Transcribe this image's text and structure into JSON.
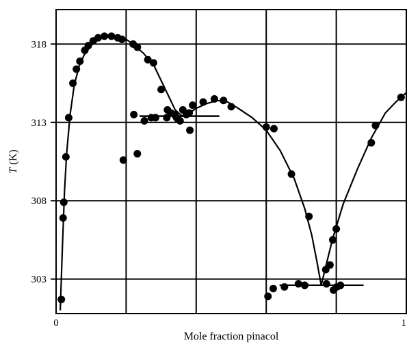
{
  "chart_data": {
    "type": "scatter",
    "xlabel": "Mole fraction pinacol",
    "ylabel_symbol": "T",
    "ylabel_unit": " (K)",
    "xlim": [
      0,
      1
    ],
    "ylim": [
      300.8,
      320.2
    ],
    "x_ticks": [
      {
        "value": 0,
        "label": "0"
      },
      {
        "value": 1,
        "label": "1"
      }
    ],
    "x_gridlines": [
      0.2,
      0.4,
      0.6,
      0.8
    ],
    "y_ticks": [
      303,
      308,
      313,
      318
    ],
    "grid": true,
    "legend": "none",
    "series": [
      {
        "kind": "points",
        "points": [
          [
            0.015,
            301.7
          ],
          [
            0.02,
            306.9
          ],
          [
            0.022,
            307.9
          ],
          [
            0.028,
            310.8
          ],
          [
            0.036,
            313.3
          ],
          [
            0.048,
            315.5
          ],
          [
            0.058,
            316.4
          ],
          [
            0.068,
            316.9
          ],
          [
            0.082,
            317.6
          ],
          [
            0.092,
            317.9
          ],
          [
            0.106,
            318.2
          ],
          [
            0.12,
            318.4
          ],
          [
            0.138,
            318.5
          ],
          [
            0.158,
            318.5
          ],
          [
            0.176,
            318.4
          ],
          [
            0.188,
            318.3
          ],
          [
            0.22,
            318.0
          ],
          [
            0.232,
            317.8
          ],
          [
            0.262,
            317.0
          ],
          [
            0.278,
            316.8
          ],
          [
            0.3,
            315.1
          ],
          [
            0.318,
            313.8
          ],
          [
            0.328,
            313.6
          ],
          [
            0.338,
            313.5
          ],
          [
            0.344,
            313.3
          ],
          [
            0.354,
            313.1
          ],
          [
            0.362,
            313.8
          ],
          [
            0.372,
            313.5
          ],
          [
            0.38,
            313.6
          ],
          [
            0.39,
            314.1
          ],
          [
            0.42,
            314.3
          ],
          [
            0.452,
            314.5
          ],
          [
            0.478,
            314.4
          ],
          [
            0.5,
            314.0
          ],
          [
            0.222,
            313.5
          ],
          [
            0.252,
            313.1
          ],
          [
            0.272,
            313.3
          ],
          [
            0.284,
            313.3
          ],
          [
            0.316,
            313.3
          ],
          [
            0.348,
            313.2
          ],
          [
            0.382,
            312.5
          ],
          [
            0.192,
            310.6
          ],
          [
            0.232,
            311.0
          ],
          [
            0.6,
            312.7
          ],
          [
            0.622,
            312.6
          ],
          [
            0.672,
            309.7
          ],
          [
            0.722,
            307.0
          ],
          [
            0.77,
            303.6
          ],
          [
            0.782,
            303.9
          ],
          [
            0.79,
            305.5
          ],
          [
            0.8,
            306.2
          ],
          [
            0.605,
            301.9
          ],
          [
            0.62,
            302.4
          ],
          [
            0.652,
            302.5
          ],
          [
            0.692,
            302.7
          ],
          [
            0.71,
            302.6
          ],
          [
            0.772,
            302.7
          ],
          [
            0.792,
            302.3
          ],
          [
            0.802,
            302.5
          ],
          [
            0.812,
            302.6
          ],
          [
            0.9,
            311.7
          ],
          [
            0.912,
            312.8
          ],
          [
            0.985,
            314.6
          ]
        ]
      },
      {
        "kind": "line",
        "points": [
          [
            0.012,
            301.0
          ],
          [
            0.018,
            305.0
          ],
          [
            0.024,
            308.6
          ],
          [
            0.03,
            311.0
          ],
          [
            0.04,
            313.5
          ],
          [
            0.052,
            315.4
          ],
          [
            0.066,
            316.6
          ],
          [
            0.08,
            317.3
          ],
          [
            0.1,
            317.9
          ],
          [
            0.12,
            318.3
          ],
          [
            0.14,
            318.5
          ],
          [
            0.16,
            318.5
          ],
          [
            0.18,
            318.4
          ],
          [
            0.2,
            318.3
          ],
          [
            0.22,
            318.0
          ],
          [
            0.25,
            317.4
          ],
          [
            0.28,
            316.6
          ],
          [
            0.31,
            315.2
          ],
          [
            0.34,
            313.8
          ],
          [
            0.36,
            313.4
          ],
          [
            0.38,
            313.6
          ],
          [
            0.4,
            313.9
          ],
          [
            0.43,
            314.2
          ],
          [
            0.46,
            314.4
          ],
          [
            0.49,
            314.3
          ],
          [
            0.52,
            313.9
          ],
          [
            0.56,
            313.3
          ],
          [
            0.6,
            312.5
          ],
          [
            0.64,
            311.2
          ],
          [
            0.68,
            309.4
          ],
          [
            0.71,
            307.5
          ],
          [
            0.73,
            305.8
          ],
          [
            0.745,
            304.1
          ],
          [
            0.757,
            302.6
          ],
          [
            0.77,
            303.8
          ],
          [
            0.79,
            305.6
          ],
          [
            0.82,
            307.8
          ],
          [
            0.86,
            310.0
          ],
          [
            0.9,
            312.0
          ],
          [
            0.94,
            313.6
          ],
          [
            0.97,
            314.3
          ],
          [
            1.0,
            314.9
          ]
        ]
      },
      {
        "kind": "hline",
        "y": 313.4,
        "x0": 0.238,
        "x1": 0.466
      },
      {
        "kind": "hline",
        "y": 302.6,
        "x0": 0.638,
        "x1": 0.878
      }
    ]
  }
}
